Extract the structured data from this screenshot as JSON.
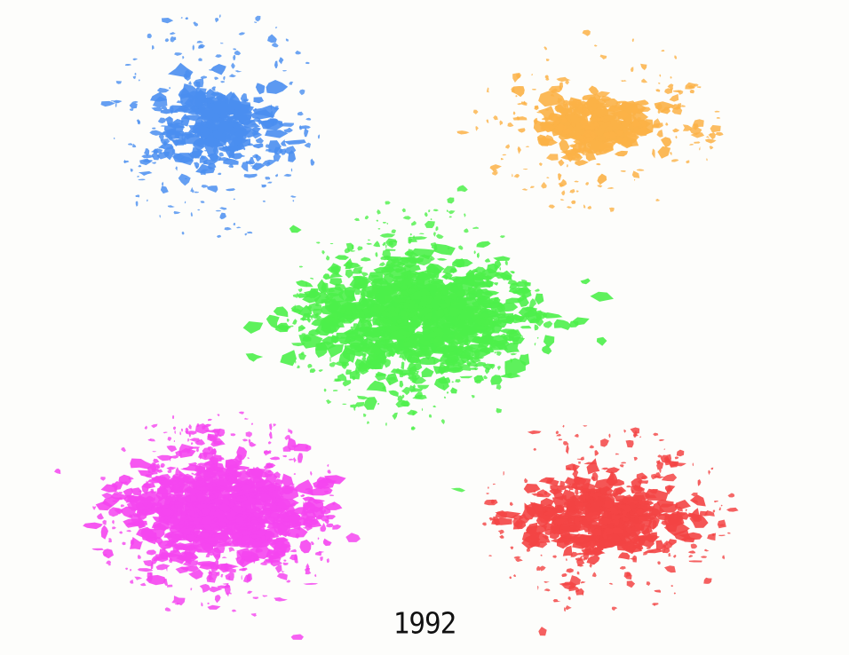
{
  "year": "1992",
  "clusters": [
    {
      "id": "blue",
      "color": "#4a8ef0"
    },
    {
      "id": "orange",
      "color": "#fbb146"
    },
    {
      "id": "green",
      "color": "#4df04a"
    },
    {
      "id": "magenta",
      "color": "#f545f0"
    },
    {
      "id": "red",
      "color": "#f34444"
    }
  ]
}
